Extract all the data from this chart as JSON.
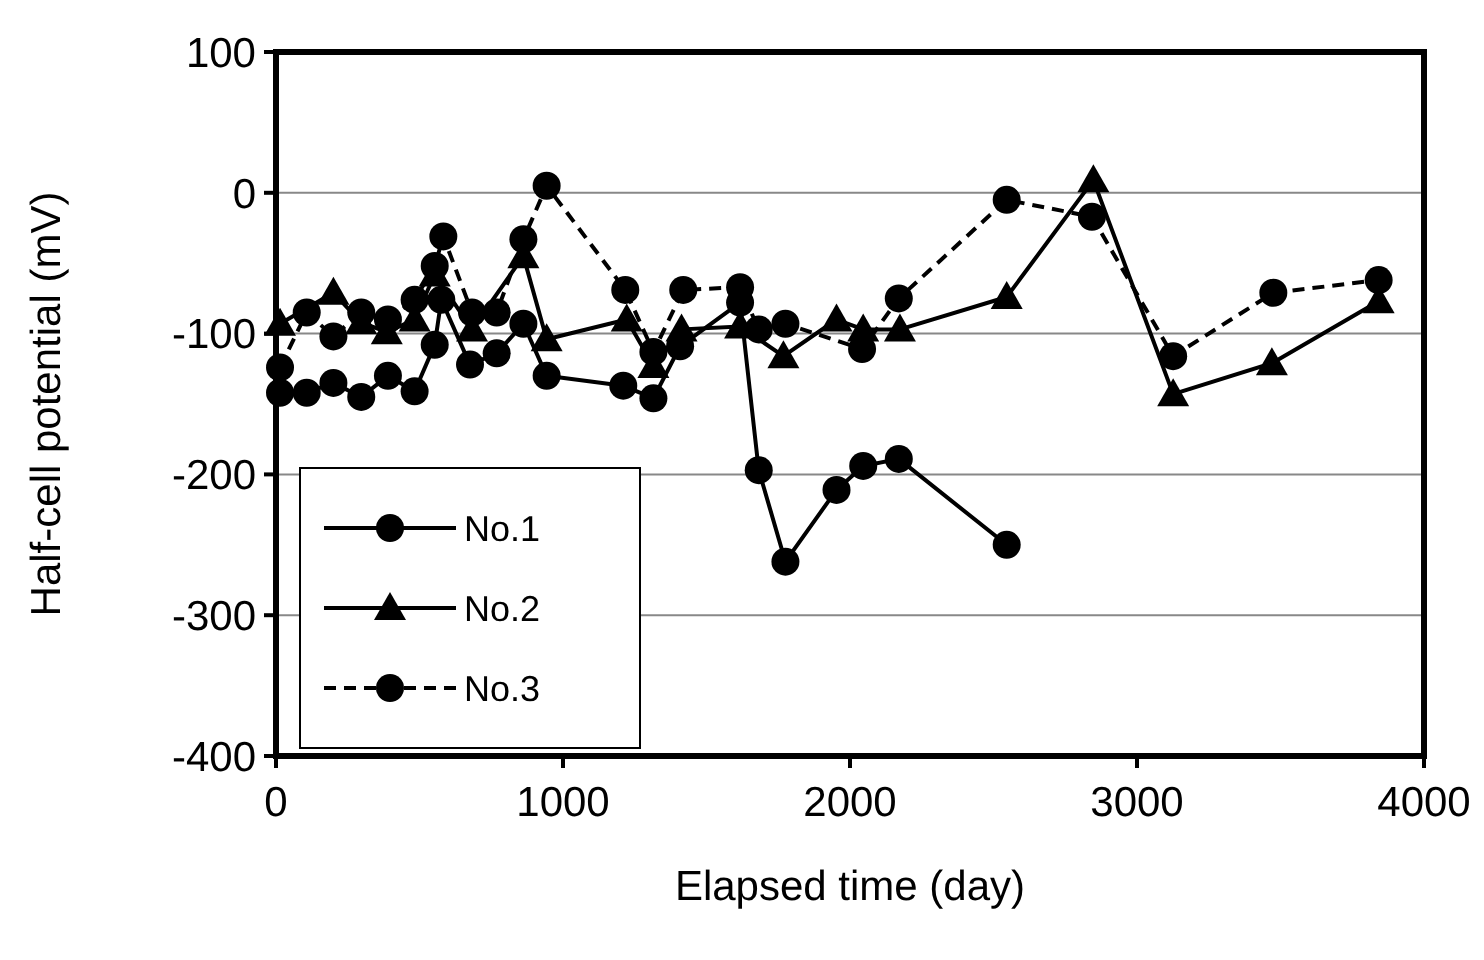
{
  "chart_data": {
    "type": "line",
    "xlabel": "Elapsed time (day)",
    "ylabel": "Half-cell potential (mV)",
    "xlim": [
      0,
      4000
    ],
    "xticks": [
      0,
      1000,
      2000,
      3000,
      4000
    ],
    "ylim": [
      -400,
      100
    ],
    "yticks": [
      -400,
      -300,
      -200,
      -100,
      0,
      100
    ],
    "grid": "y",
    "legend": "bottom left",
    "series": [
      {
        "name": "No.1",
        "color": "#000000",
        "marker": "circle",
        "line_style": "solid",
        "x": [
          14,
          107,
          200,
          297,
          390,
          483,
          553,
          576,
          676,
          769,
          862,
          943,
          1210,
          1315,
          1408,
          1617,
          1682,
          1775,
          1953,
          2046,
          2170,
          2546
        ],
        "values": [
          -142,
          -142,
          -135,
          -145,
          -130,
          -141,
          -108,
          -76,
          -122,
          -114,
          -93,
          -130,
          -137,
          -146,
          -109,
          -78,
          -197,
          -262,
          -211,
          -194,
          -189,
          -250
        ]
      },
      {
        "name": "No.2",
        "color": "#000000",
        "marker": "triangle",
        "line_style": "solid",
        "x": [
          14,
          107,
          200,
          297,
          386,
          483,
          553,
          683,
          862,
          943,
          1222,
          1315,
          1413,
          1617,
          1768,
          1953,
          2046,
          2174,
          2546,
          2848,
          3126,
          3470,
          3842
        ],
        "values": [
          -93,
          null,
          -71,
          -92,
          -99,
          -90,
          -58,
          -97,
          -45,
          -104,
          -90,
          -123,
          -97,
          -95,
          -116,
          -90,
          -97,
          -97,
          -74,
          9,
          -143,
          -121,
          -77
        ]
      },
      {
        "name": "No.3",
        "color": "#000000",
        "marker": "circle",
        "line_style": "dashed",
        "x": [
          14,
          107,
          200,
          297,
          390,
          483,
          553,
          583,
          683,
          769,
          862,
          943,
          1217,
          1315,
          1419,
          1617,
          1682,
          1775,
          2042,
          2170,
          2546,
          2843,
          3126,
          3475,
          3842
        ],
        "values": [
          -124,
          -85,
          -102,
          -85,
          -90,
          -76,
          -52,
          -31,
          -85,
          -85,
          -33,
          5,
          -69,
          -113,
          -69,
          -67,
          -97,
          -93,
          -111,
          -75,
          -5,
          -17,
          -116,
          -71,
          -62
        ]
      }
    ]
  }
}
